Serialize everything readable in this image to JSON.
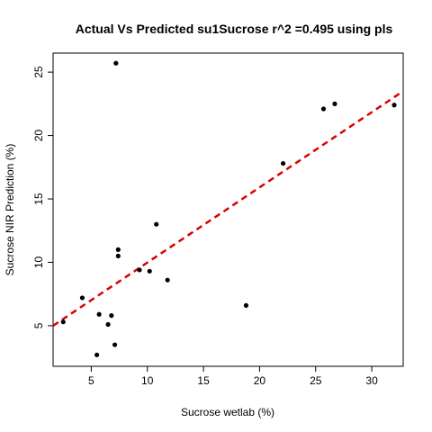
{
  "chart_data": {
    "type": "scatter",
    "title": "Actual Vs Predicted su1Sucrose r^2 =0.495 using pls",
    "xlabel": "Sucrose wetlab (%)",
    "ylabel": "Sucrose NIR Prediction (%)",
    "xlim": [
      1.6,
      32.8
    ],
    "ylim": [
      1.8,
      26.5
    ],
    "xticks": [
      5,
      10,
      15,
      20,
      25,
      30
    ],
    "yticks": [
      5,
      10,
      15,
      20,
      25
    ],
    "grid": false,
    "legend": "none",
    "point_color": "#000000",
    "fit_line_color": "#dd0000",
    "points": [
      {
        "x": 2.5,
        "y": 5.3
      },
      {
        "x": 4.2,
        "y": 7.2
      },
      {
        "x": 5.5,
        "y": 2.7
      },
      {
        "x": 5.7,
        "y": 5.9
      },
      {
        "x": 6.5,
        "y": 5.1
      },
      {
        "x": 6.8,
        "y": 5.8
      },
      {
        "x": 7.1,
        "y": 3.5
      },
      {
        "x": 7.2,
        "y": 25.7
      },
      {
        "x": 7.4,
        "y": 10.5
      },
      {
        "x": 7.4,
        "y": 11.0
      },
      {
        "x": 9.3,
        "y": 9.4
      },
      {
        "x": 10.2,
        "y": 9.3
      },
      {
        "x": 10.8,
        "y": 13.0
      },
      {
        "x": 11.8,
        "y": 8.6
      },
      {
        "x": 18.8,
        "y": 6.6
      },
      {
        "x": 22.1,
        "y": 17.8
      },
      {
        "x": 25.7,
        "y": 22.1
      },
      {
        "x": 26.7,
        "y": 22.5
      },
      {
        "x": 32.0,
        "y": 22.4
      }
    ],
    "fit_line": {
      "x": [
        1.6,
        32.8
      ],
      "y": [
        5.0,
        23.5
      ]
    }
  }
}
